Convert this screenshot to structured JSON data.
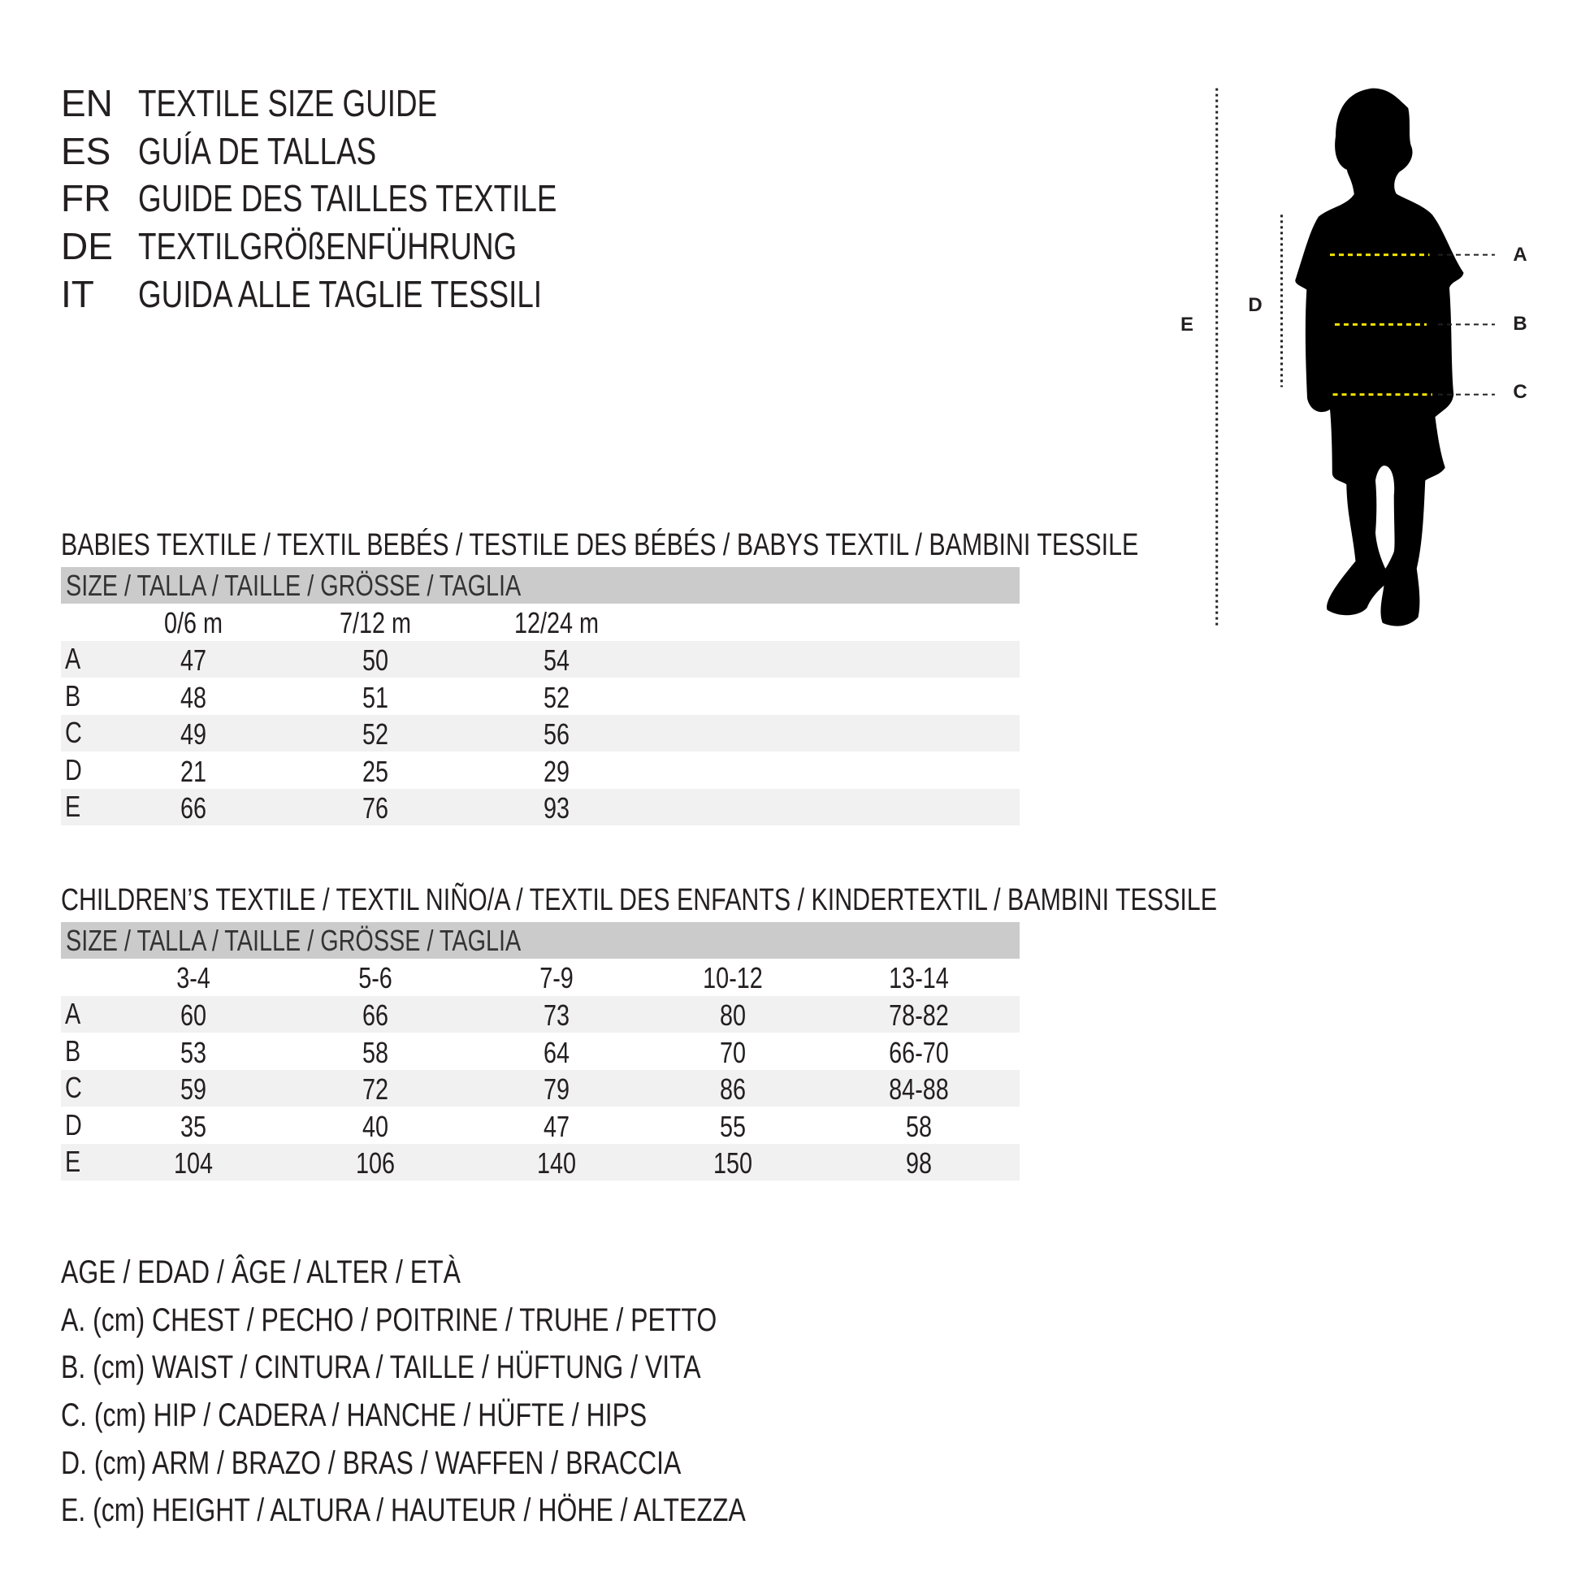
{
  "titles": [
    {
      "lang": "EN",
      "text": "TEXTILE SIZE GUIDE"
    },
    {
      "lang": "ES",
      "text": "GUÍA DE TALLAS"
    },
    {
      "lang": "FR",
      "text": "GUIDE DES TAILLES TEXTILE"
    },
    {
      "lang": "DE",
      "text": "TEXTILGRÖßENFÜHRUNG"
    },
    {
      "lang": "IT",
      "text": "GUIDA ALLE TAGLIE TESSILI"
    }
  ],
  "babies": {
    "heading": "BABIES TEXTILE / TEXTIL BEBÉS / TESTILE DES BÉBÉS / BABYS TEXTIL / BAMBINI TESSILE",
    "size_header": "SIZE / TALLA / TAILLE / GRÖSSE / TAGLIA",
    "columns": [
      "0/6 m",
      "7/12 m",
      "12/24 m"
    ],
    "rows": [
      {
        "label": "A",
        "values": [
          "47",
          "50",
          "54"
        ]
      },
      {
        "label": "B",
        "values": [
          "48",
          "51",
          "52"
        ]
      },
      {
        "label": "C",
        "values": [
          "49",
          "52",
          "56"
        ]
      },
      {
        "label": "D",
        "values": [
          "21",
          "25",
          "29"
        ]
      },
      {
        "label": "E",
        "values": [
          "66",
          "76",
          "93"
        ]
      }
    ]
  },
  "children": {
    "heading": "CHILDREN’S TEXTILE / TEXTIL NIÑO/A / TEXTIL DES ENFANTS / KINDERTEXTIL / BAMBINI TESSILE",
    "size_header": "SIZE / TALLA / TAILLE / GRÖSSE / TAGLIA",
    "columns": [
      "3-4",
      "5-6",
      "7-9",
      "10-12",
      "13-14"
    ],
    "rows": [
      {
        "label": "A",
        "values": [
          "60",
          "66",
          "73",
          "80",
          "78-82"
        ]
      },
      {
        "label": "B",
        "values": [
          "53",
          "58",
          "64",
          "70",
          "66-70"
        ]
      },
      {
        "label": "C",
        "values": [
          "59",
          "72",
          "79",
          "86",
          "84-88"
        ]
      },
      {
        "label": "D",
        "values": [
          "35",
          "40",
          "47",
          "55",
          "58"
        ]
      },
      {
        "label": "E",
        "values": [
          "104",
          "106",
          "140",
          "150",
          "98"
        ]
      }
    ]
  },
  "legend": [
    "AGE / EDAD / ÂGE / ALTER / ETÀ",
    "A. (cm) CHEST / PECHO / POITRINE / TRUHE / PETTO",
    "B. (cm) WAIST / CINTURA / TAILLE / HÜFTUNG / VITA",
    "C. (cm) HIP / CADERA / HANCHE / HÜFTE / HIPS",
    "D. (cm) ARM / BRAZO / BRAS / WAFFEN / BRACCIA",
    "E. (cm) HEIGHT / ALTURA / HAUTEUR / HÖHE / ALTEZZA"
  ],
  "figure": {
    "labels": {
      "A": "A",
      "B": "B",
      "C": "C",
      "D": "D",
      "E": "E"
    },
    "colors": {
      "silhouette": "#000000",
      "measure_line": "#f2e200",
      "guide_line": "#222222",
      "size_bar": "#cbcbcb",
      "row_stripe": "#f1f1f1"
    }
  }
}
